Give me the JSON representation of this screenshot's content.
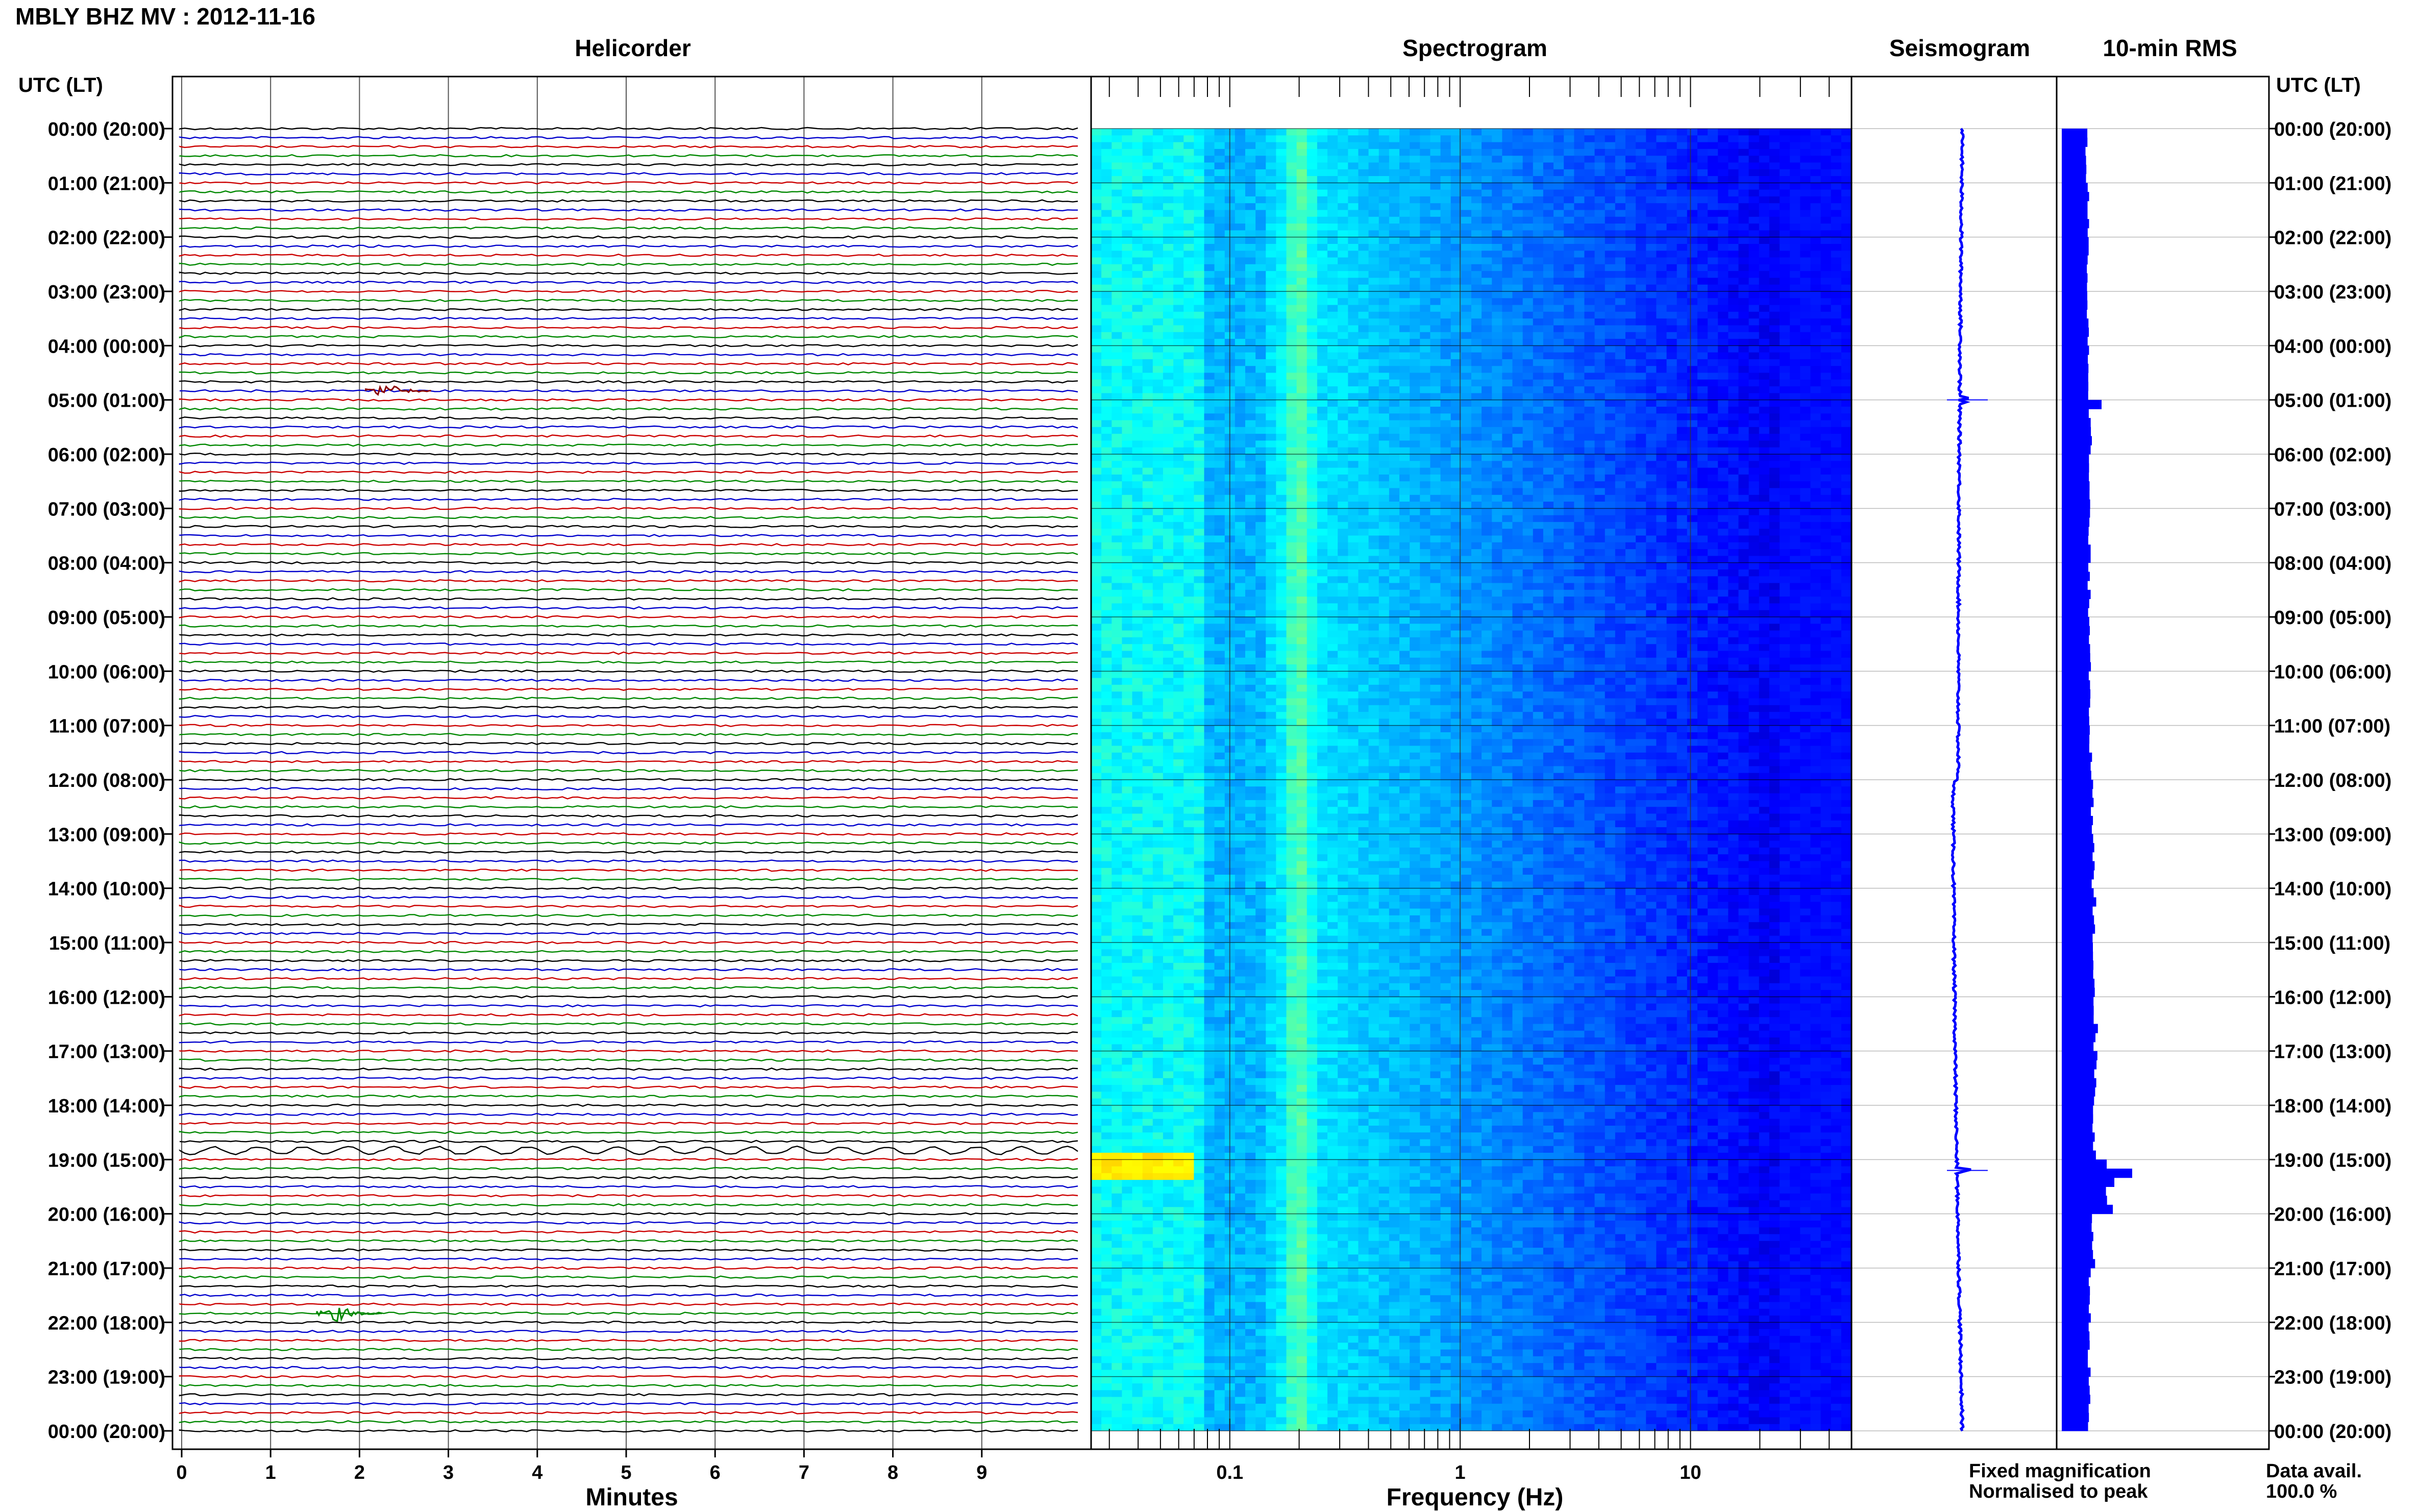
{
  "station_title": "MBLY BHZ MV : 2012-11-16",
  "headings": {
    "helicorder": "Helicorder",
    "spectrogram": "Spectrogram",
    "seismogram": "Seismogram",
    "rms": "10-min RMS"
  },
  "time_axis_label_left": "UTC (LT)",
  "time_axis_label_right": "UTC (LT)",
  "time_labels": [
    "00:00 (20:00)",
    "01:00 (21:00)",
    "02:00 (22:00)",
    "03:00 (23:00)",
    "04:00 (00:00)",
    "05:00 (01:00)",
    "06:00 (02:00)",
    "07:00 (03:00)",
    "08:00 (04:00)",
    "09:00 (05:00)",
    "10:00 (06:00)",
    "11:00 (07:00)",
    "12:00 (08:00)",
    "13:00 (09:00)",
    "14:00 (10:00)",
    "15:00 (11:00)",
    "16:00 (12:00)",
    "17:00 (13:00)",
    "18:00 (14:00)",
    "19:00 (15:00)",
    "20:00 (16:00)",
    "21:00 (17:00)",
    "22:00 (18:00)",
    "23:00 (19:00)",
    "00:00 (20:00)"
  ],
  "helicorder_xlabel": "Minutes",
  "helicorder_ticks": [
    "0",
    "1",
    "2",
    "3",
    "4",
    "5",
    "6",
    "7",
    "8",
    "9"
  ],
  "spectrogram_xlabel": "Frequency (Hz)",
  "spectrogram_ticks": [
    "0.1",
    "1",
    "10"
  ],
  "legend": {
    "fixed": "Fixed magnification",
    "normalised": "Normalised to peak",
    "fixed_color": "#0000ff",
    "normalised_color": "#ff0000"
  },
  "data_avail_label": "Data avail.",
  "data_avail_value": "100.0 %",
  "colors": {
    "trace_cycle": [
      "#000000",
      "#0000cc",
      "#cc0000",
      "#008800"
    ],
    "seismogram": "#0000ff",
    "rms_bar": "#0000ff"
  },
  "chart_data": [
    {
      "type": "line",
      "panel": "helicorder",
      "xlabel": "Minutes",
      "x_range": [
        0,
        10
      ],
      "hours": 24,
      "lines_per_hour": 6,
      "events": [
        {
          "hour": 4,
          "line": 5,
          "minute": 2.3,
          "color": "#8b0000"
        },
        {
          "hour": 18,
          "line": 5,
          "minute": 0,
          "extends_to_minute": 10,
          "color": "#000000"
        },
        {
          "hour": 21,
          "line": 5,
          "minute": 1.75,
          "color": "#008800"
        }
      ]
    },
    {
      "type": "heatmap",
      "panel": "spectrogram",
      "xlabel": "Frequency (Hz)",
      "x_scale": "log",
      "x_range": [
        0.025,
        50
      ],
      "y_range_hours": [
        0,
        24
      ],
      "colormap": "jet",
      "features": {
        "microseism_peak_hz": 0.2,
        "strong_low_freq_event": {
          "hour": 19.1,
          "freq_range_hz": [
            0.025,
            0.07
          ]
        }
      }
    },
    {
      "type": "line",
      "panel": "seismogram",
      "spike_hours": [
        5.0,
        19.2
      ]
    },
    {
      "type": "bar",
      "panel": "10-min RMS",
      "interval_minutes": 10,
      "peak_hour": 19.2,
      "hourly_level": [
        0.4,
        0.45,
        0.45,
        0.45,
        0.5,
        0.55,
        0.5,
        0.5,
        0.5,
        0.55,
        0.55,
        0.55,
        0.6,
        0.65,
        0.7,
        0.7,
        0.75,
        0.75,
        0.7,
        1.3,
        0.65,
        0.55,
        0.5,
        0.5
      ]
    }
  ]
}
